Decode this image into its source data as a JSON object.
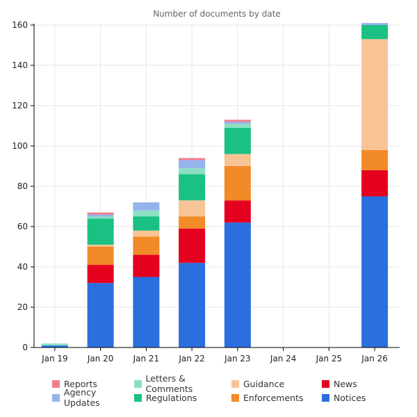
{
  "chart_data": {
    "type": "bar",
    "stacked": true,
    "title": "Number of documents by date",
    "xlabel": "",
    "ylabel": "",
    "ylim": [
      0,
      160
    ],
    "yticks": [
      0,
      20,
      40,
      60,
      80,
      100,
      120,
      140,
      160
    ],
    "grid": true,
    "legend_position": "bottom",
    "categories": [
      "Jan 19",
      "Jan 20",
      "Jan 21",
      "Jan 22",
      "Jan 23",
      "Jan 24",
      "Jan 25",
      "Jan 26"
    ],
    "series": [
      {
        "name": "Notices",
        "color": "#2b6fde",
        "values": [
          1,
          32,
          35,
          42,
          62,
          0,
          0,
          75
        ]
      },
      {
        "name": "News",
        "color": "#e5001f",
        "values": [
          0,
          9,
          11,
          17,
          11,
          0,
          0,
          13
        ]
      },
      {
        "name": "Enforcements",
        "color": "#f28a28",
        "values": [
          0,
          9,
          9,
          6,
          17,
          0,
          0,
          10
        ]
      },
      {
        "name": "Guidance",
        "color": "#f8c495",
        "values": [
          0,
          1,
          3,
          8,
          6,
          0,
          0,
          55
        ]
      },
      {
        "name": "Regulations",
        "color": "#1bc182",
        "values": [
          0,
          13,
          7,
          13,
          13,
          0,
          0,
          7
        ]
      },
      {
        "name": "Letters & Comments",
        "color": "#8ddfc2",
        "values": [
          1,
          1,
          3,
          3,
          2,
          0,
          0,
          0
        ]
      },
      {
        "name": "Agency Updates",
        "color": "#94b3ec",
        "values": [
          0,
          1,
          4,
          4,
          1,
          0,
          0,
          1
        ]
      },
      {
        "name": "Reports",
        "color": "#ef7f8a",
        "values": [
          0,
          1,
          0,
          1,
          1,
          0,
          0,
          0
        ]
      }
    ],
    "legend_order": [
      "Reports",
      "Letters & Comments",
      "Guidance",
      "News",
      "Agency Updates",
      "Regulations",
      "Enforcements",
      "Notices"
    ]
  }
}
